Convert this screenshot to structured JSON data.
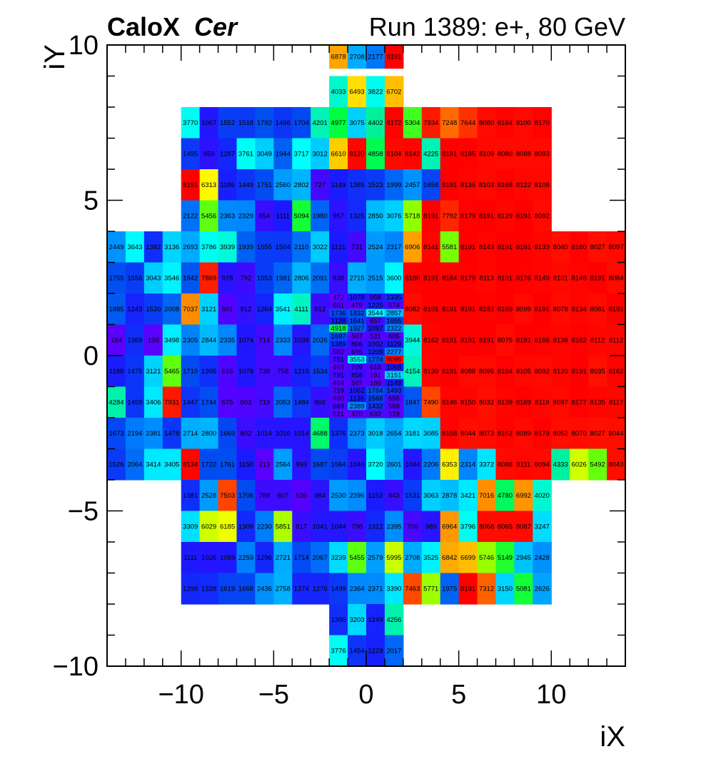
{
  "chart_data": {
    "type": "heatmap",
    "title_bold": "CaloX",
    "title_italic": "Cer",
    "run_label": "Run 1389: e+, 80 GeV",
    "xlabel": "iX",
    "ylabel": "iY",
    "xlim": [
      -14,
      14
    ],
    "ylim": [
      -10,
      10
    ],
    "x_ticks": [
      -10,
      -5,
      0,
      5,
      10
    ],
    "x_tick_labels": [
      "−10",
      "−5",
      "0",
      "5",
      "10"
    ],
    "y_ticks": [
      -10,
      -5,
      0,
      5,
      10
    ],
    "y_tick_labels": [
      "−10",
      "−5",
      "0",
      "5",
      "10"
    ],
    "colorscale": [
      "#5a00ff",
      "#1a1aff",
      "#0050f0",
      "#0090ff",
      "#00cfff",
      "#00ffff",
      "#00f0a0",
      "#00ff40",
      "#80ff00",
      "#ffff00",
      "#ffa000",
      "#ff3c00",
      "#ff0000"
    ],
    "zmin": 500,
    "zmax": 8191,
    "big_rows": [
      {
        "y": 8.5,
        "x0": -2,
        "values": [
          4033,
          6493,
          3822,
          6702
        ]
      },
      {
        "y": 7.5,
        "x0": -10,
        "values": [
          3770,
          1067,
          1552,
          1518,
          1792,
          1466,
          1704,
          4201,
          4977,
          3075,
          4402,
          8172,
          5304,
          7934,
          7248,
          7644,
          8080,
          8164,
          8100,
          8170
        ]
      },
      {
        "y": 6.5,
        "x0": -10,
        "values": [
          1495,
          950,
          1287,
          3761,
          3049,
          1944,
          3717,
          3012,
          6610,
          8120,
          4858,
          8104,
          8142,
          4225,
          8191,
          8185,
          8109,
          8080,
          8088,
          8093
        ]
      },
      {
        "y": 5.5,
        "x0": -10,
        "values": [
          8191,
          6313,
          1186,
          1449,
          1751,
          2560,
          2802,
          727,
          1149,
          1385,
          1523,
          1999,
          2457,
          1658,
          8191,
          8136,
          8103,
          8168,
          8122,
          8108
        ]
      },
      {
        "y": 4.5,
        "x0": -10,
        "values": [
          2122,
          5456,
          2363,
          2329,
          854,
          1111,
          5094,
          1980,
          957,
          1325,
          2850,
          3076,
          5718,
          8191,
          7792,
          8179,
          8191,
          8129,
          8191,
          8092
        ]
      },
      {
        "y": 3.5,
        "x0": -14,
        "values": [
          2449,
          3643,
          1382,
          3136,
          2693,
          3786,
          3939,
          1939,
          1555,
          1504,
          2110,
          3022,
          1121,
          731,
          2524,
          2317,
          6906,
          8141,
          5581,
          8191,
          8143,
          8191,
          8191,
          8133,
          8040,
          8180,
          8027,
          8097
        ]
      },
      {
        "y": 2.5,
        "x0": -14,
        "values": [
          1755,
          1556,
          3043,
          3546,
          1842,
          7869,
          978,
          792,
          1553,
          1981,
          2806,
          2091,
          838,
          2715,
          2515,
          3600,
          8180,
          8191,
          8184,
          8179,
          8113,
          8191,
          8176,
          8149,
          8101,
          8148,
          8191,
          8084
        ]
      },
      {
        "y": 1.5,
        "x0": -14,
        "values": [
          1885,
          1243,
          1530,
          2008,
          7037,
          3121,
          601,
          912,
          1264,
          3541,
          4111,
          812,
          null,
          null,
          null,
          null,
          8082,
          8191,
          8191,
          8191,
          8182,
          8189,
          8099,
          8191,
          8078,
          8134,
          8081,
          8191
        ]
      },
      {
        "y": 0.5,
        "x0": -14,
        "values": [
          184,
          1369,
          199,
          3498,
          2305,
          2844,
          2335,
          1074,
          714,
          2333,
          1038,
          2026,
          null,
          null,
          null,
          null,
          3944,
          8162,
          8191,
          8191,
          8191,
          8075,
          8191,
          8166,
          8138,
          8182,
          8112,
          8112
        ]
      },
      {
        "y": -0.5,
        "x0": -14,
        "values": [
          1188,
          1475,
          3121,
          5465,
          1719,
          1395,
          616,
          1079,
          736,
          758,
          1219,
          1534,
          null,
          null,
          null,
          null,
          4154,
          8139,
          8191,
          8088,
          8095,
          8184,
          8105,
          8092,
          8120,
          8191,
          8035,
          8162
        ]
      },
      {
        "y": -1.5,
        "x0": -14,
        "values": [
          4284,
          1459,
          3406,
          7931,
          1447,
          1744,
          575,
          603,
          719,
          2053,
          1484,
          866,
          null,
          null,
          null,
          null,
          1847,
          7490,
          8146,
          8150,
          8032,
          8139,
          8169,
          8119,
          8097,
          8177,
          8135,
          8117
        ]
      },
      {
        "y": -2.5,
        "x0": -14,
        "values": [
          1673,
          2194,
          2381,
          1478,
          2714,
          2800,
          1669,
          802,
          1014,
          1016,
          1014,
          4688,
          1376,
          2373,
          3018,
          2654,
          3181,
          3085,
          8158,
          8044,
          8073,
          8162,
          8089,
          8179,
          8052,
          8070,
          8027,
          8044
        ]
      },
      {
        "y": -3.5,
        "x0": -14,
        "values": [
          1526,
          2064,
          3414,
          3405,
          8134,
          1722,
          1761,
          1150,
          213,
          2564,
          993,
          1687,
          1564,
          1040,
          3720,
          2601,
          1044,
          2206,
          6353,
          2314,
          3372,
          8088,
          8111,
          8094,
          4333,
          6026,
          5492,
          8043
        ]
      },
      {
        "y": -4.5,
        "x0": -10,
        "values": [
          1381,
          2528,
          7503,
          1706,
          788,
          807,
          536,
          984,
          2530,
          2396,
          1153,
          843,
          1531,
          3063,
          2878,
          3421,
          7016,
          4780,
          6992,
          4020
        ]
      },
      {
        "y": -5.5,
        "x0": -10,
        "values": [
          3309,
          6029,
          6185,
          1309,
          2230,
          5851,
          817,
          1041,
          1044,
          798,
          1312,
          2395,
          700,
          989,
          6964,
          3796,
          8068,
          8065,
          8087,
          3247
        ]
      },
      {
        "y": -6.5,
        "x0": -10,
        "values": [
          1111,
          1026,
          1089,
          2259,
          1296,
          2721,
          1714,
          2067,
          3239,
          5455,
          2579,
          5995,
          2708,
          3525,
          6842,
          6699,
          5746,
          5149,
          2945,
          2428
        ]
      },
      {
        "y": -7.5,
        "x0": -10,
        "values": [
          1299,
          1328,
          1619,
          1668,
          2436,
          2758,
          1274,
          1276,
          1499,
          2364,
          2371,
          3390,
          7463,
          5771,
          1975,
          8191,
          7312,
          3150,
          5081,
          2626
        ]
      },
      {
        "y": -8.5,
        "x0": -2,
        "values": [
          1390,
          3203,
          1249,
          4256
        ]
      },
      {
        "y": -9.5,
        "x0": -2,
        "values": [
          3776,
          1454,
          1229,
          2017
        ]
      }
    ],
    "top_row": {
      "y0": 9.25,
      "y1": 10,
      "x0": -2,
      "values": [
        6878,
        2708,
        2177,
        8191
      ]
    },
    "fine_rows": [
      {
        "y": 1.875,
        "values": [
          472,
          1078,
          958,
          1335
        ]
      },
      {
        "y": 1.625,
        "values": [
          601,
          479,
          1225,
          574
        ]
      },
      {
        "y": 1.375,
        "values": [
          1736,
          1832,
          3544,
          2857
        ]
      },
      {
        "y": 1.125,
        "values": [
          1128,
          1641,
          657,
          1655
        ]
      },
      {
        "y": 0.875,
        "values": [
          4918,
          1927,
          1097,
          2322
        ]
      },
      {
        "y": 0.625,
        "values": [
          1697,
          507,
          531,
          605
        ]
      },
      {
        "y": 0.375,
        "values": [
          1389,
          806,
          1002,
          1129
        ]
      },
      {
        "y": 0.125,
        "values": [
          582,
          695,
          1209,
          2277
        ]
      },
      {
        "y": -0.125,
        "values": [
          751,
          3553,
          1774,
          8095
        ]
      },
      {
        "y": -0.375,
        "values": [
          458,
          709,
          618,
          1068
        ]
      },
      {
        "y": -0.625,
        "values": [
          791,
          858,
          191,
          3151
        ]
      },
      {
        "y": -0.875,
        "values": [
          464,
          507,
          180,
          1149
        ]
      },
      {
        "y": -1.125,
        "values": [
          719,
          1062,
          1764,
          1493
        ]
      },
      {
        "y": -1.375,
        "values": [
          460,
          1136,
          1566,
          655
        ]
      },
      {
        "y": -1.625,
        "values": [
          668,
          2389,
          1432,
          569
        ]
      },
      {
        "y": -1.875,
        "values": [
          521,
          470,
          632,
          519
        ]
      }
    ]
  }
}
